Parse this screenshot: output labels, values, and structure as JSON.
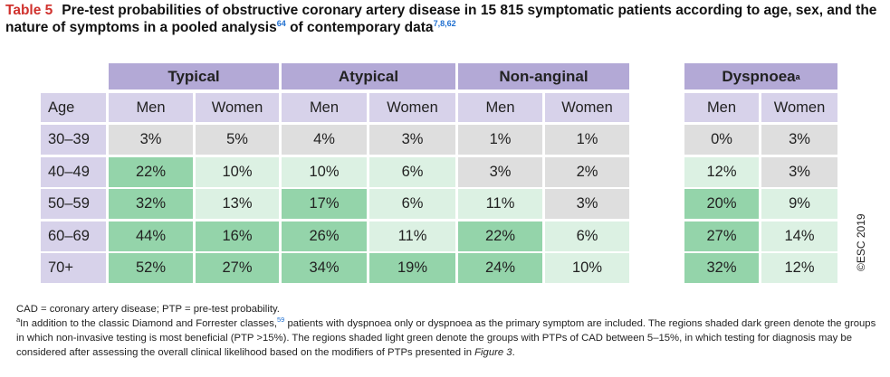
{
  "header": {
    "label": "Table 5",
    "title": "Pre-test probabilities of obstructive coronary artery disease in 15 815 symptomatic patients according to age, sex, and the nature of symptoms in a pooled analysis",
    "title_ref1": "64",
    "title_cont": "of contemporary data",
    "title_ref2": "7,8,62"
  },
  "table": {
    "groups": [
      {
        "label": "Typical"
      },
      {
        "label": "Atypical"
      },
      {
        "label": "Non-anginal"
      },
      {
        "label": "Dyspnoea",
        "sup": "a"
      }
    ],
    "subheaders": [
      "Age",
      "Men",
      "Women",
      "Men",
      "Women",
      "Men",
      "Women",
      "Men",
      "Women"
    ],
    "rows": [
      {
        "age": "30–39",
        "cells": [
          "3%",
          "5%",
          "4%",
          "3%",
          "1%",
          "1%",
          "0%",
          "3%"
        ],
        "shades": [
          "gray",
          "gray",
          "gray",
          "gray",
          "gray",
          "gray",
          "gray",
          "gray"
        ]
      },
      {
        "age": "40–49",
        "cells": [
          "22%",
          "10%",
          "10%",
          "6%",
          "3%",
          "2%",
          "12%",
          "3%"
        ],
        "shades": [
          "dark",
          "light",
          "light",
          "light",
          "gray",
          "gray",
          "light",
          "gray"
        ]
      },
      {
        "age": "50–59",
        "cells": [
          "32%",
          "13%",
          "17%",
          "6%",
          "11%",
          "3%",
          "20%",
          "9%"
        ],
        "shades": [
          "dark",
          "light",
          "dark",
          "light",
          "light",
          "gray",
          "dark",
          "light"
        ]
      },
      {
        "age": "60–69",
        "cells": [
          "44%",
          "16%",
          "26%",
          "11%",
          "22%",
          "6%",
          "27%",
          "14%"
        ],
        "shades": [
          "dark",
          "dark",
          "dark",
          "light",
          "dark",
          "light",
          "dark",
          "light"
        ]
      },
      {
        "age": "70+",
        "cells": [
          "52%",
          "27%",
          "34%",
          "19%",
          "24%",
          "10%",
          "32%",
          "12%"
        ],
        "shades": [
          "dark",
          "dark",
          "dark",
          "dark",
          "dark",
          "light",
          "dark",
          "light"
        ]
      }
    ]
  },
  "copyright": "©ESC 2019",
  "footnotes": {
    "abbrev": "CAD = coronary artery disease; PTP = pre-test probability.",
    "marker": "a",
    "text1": "In addition to the classic Diamond and Forrester classes,",
    "ref": "59",
    "text2": " patients with dyspnoea only or dyspnoea as the primary symptom are included. The regions shaded dark green denote the groups in which non-invasive testing is most beneficial (PTP >15%). The regions shaded light green denote the groups with PTPs of CAD between 5–15%, in which testing for diagnosis may be considered after assessing the overall clinical likelihood based on the modifiers of PTPs presented in ",
    "figure": "Figure 3",
    "end": "."
  }
}
